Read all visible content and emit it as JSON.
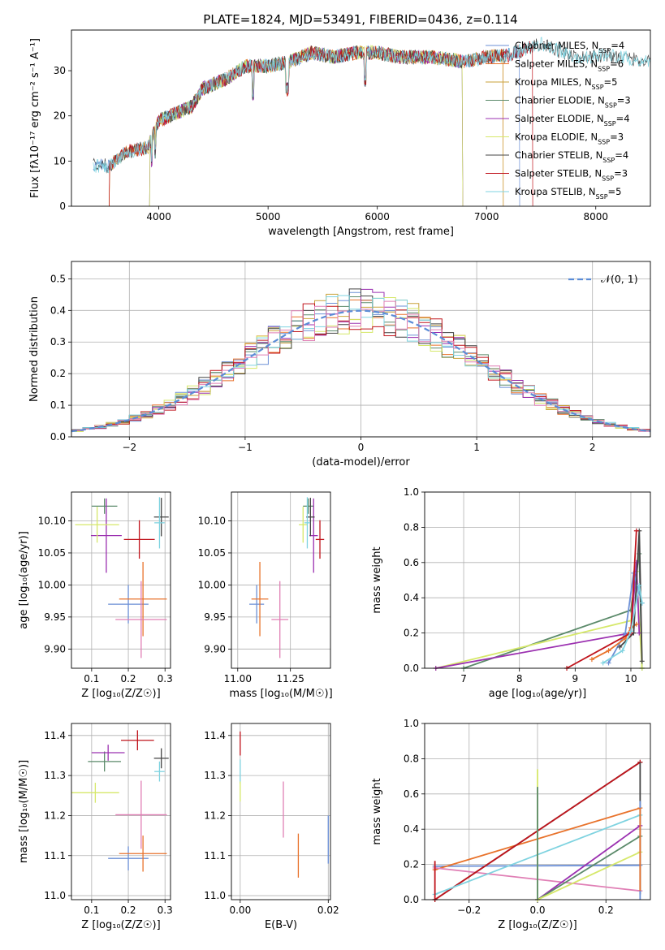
{
  "figure_title": "PLATE=1824, MJD=53491, FIBERID=0436, z=0.114",
  "colors": {
    "chabrier_miles": "#6b8fd6",
    "salpeter_miles": "#e8722b",
    "kroupa_miles": "#c9a23a",
    "chabrier_elodie": "#5b8a6a",
    "salpeter_elodie": "#9b30b0",
    "kroupa_elodie": "#d6e86a",
    "chabrier_stelib": "#444444",
    "salpeter_stelib": "#c0141c",
    "kroupa_stelib": "#7fd3e0",
    "pink": "#e07fb5",
    "normal_curve": "#5b8cd6"
  },
  "chart_data": [
    {
      "id": "spectrum",
      "type": "line",
      "xlabel": "wavelength [Angstrom, rest frame]",
      "ylabel": "Flux [f",
      "ylabel_full": "Flux [fλ10⁻¹⁷ erg cm⁻² s⁻¹ A⁻¹]",
      "xlim": [
        3200,
        8500
      ],
      "ylim": [
        0,
        39
      ],
      "xticks": [
        4000,
        5000,
        6000,
        7000,
        8000
      ],
      "yticks": [
        0,
        10,
        20,
        30
      ],
      "legend": [
        "Chabrier MILES, N_SSP=4",
        "Salpeter MILES, N_SSP=6",
        "Kroupa MILES, N_SSP=5",
        "Chabrier ELODIE, N_SSP=3",
        "Salpeter ELODIE, N_SSP=4",
        "Kroupa ELODIE, N_SSP=3",
        "Chabrier STELIB, N_SSP=4",
        "Salpeter STELIB, N_SSP=3",
        "Kroupa STELIB, N_SSP=5"
      ],
      "legend_placement": "right",
      "series": [
        {
          "key": "chabrier_miles",
          "start": 3400,
          "end": 7300
        },
        {
          "key": "salpeter_miles",
          "start": 3550,
          "end": 7150
        },
        {
          "key": "kroupa_miles",
          "start": 3550,
          "end": 7150
        },
        {
          "key": "chabrier_elodie",
          "start": 3920,
          "end": 6780
        },
        {
          "key": "salpeter_elodie",
          "start": 3920,
          "end": 6780
        },
        {
          "key": "kroupa_elodie",
          "start": 3920,
          "end": 6780
        },
        {
          "key": "chabrier_stelib",
          "start": 3400,
          "end": 8500
        },
        {
          "key": "salpeter_stelib",
          "start": 3550,
          "end": 7420
        },
        {
          "key": "kroupa_stelib",
          "start": 3400,
          "end": 8500
        }
      ],
      "continuum": [
        [
          3400,
          9
        ],
        [
          3550,
          9
        ],
        [
          3700,
          12
        ],
        [
          3900,
          13
        ],
        [
          4000,
          19
        ],
        [
          4200,
          21
        ],
        [
          4300,
          22
        ],
        [
          4400,
          26
        ],
        [
          4600,
          28
        ],
        [
          4800,
          31
        ],
        [
          5000,
          31
        ],
        [
          5200,
          32
        ],
        [
          5400,
          34
        ],
        [
          5600,
          33
        ],
        [
          5800,
          34
        ],
        [
          6000,
          34
        ],
        [
          6200,
          33
        ],
        [
          6500,
          33
        ],
        [
          6800,
          32
        ],
        [
          7000,
          33
        ],
        [
          7200,
          33.5
        ],
        [
          7500,
          36
        ],
        [
          7800,
          33
        ],
        [
          8100,
          33.5
        ],
        [
          8500,
          32
        ]
      ]
    },
    {
      "id": "residuals",
      "type": "line",
      "xlabel": "(data-model)/error",
      "ylabel": "Normed distribution",
      "xlim": [
        -2.5,
        2.5
      ],
      "ylim": [
        0,
        0.555
      ],
      "xticks": [
        -2,
        -1,
        0,
        1,
        2
      ],
      "yticks": [
        0.0,
        0.1,
        0.2,
        0.3,
        0.4,
        0.5
      ],
      "legend": [
        "𝒩(0, 1)"
      ],
      "legend_placement": "top-right",
      "bin_width": 0.1
    },
    {
      "id": "z_age",
      "type": "scatter",
      "xlabel": "Z [log₁₀(Z/Z☉)]",
      "ylabel": "age  [log₁₀(age/yr)]",
      "xlim": [
        0.045,
        0.315
      ],
      "ylim": [
        9.87,
        10.145
      ],
      "xticks": [
        0.1,
        0.2,
        0.3
      ],
      "yticks": [
        9.9,
        9.95,
        10.0,
        10.05,
        10.1
      ],
      "points": [
        {
          "key": "chabrier_miles",
          "x": 0.2,
          "y": 9.97,
          "ex": 0.055,
          "ey": 0.03
        },
        {
          "key": "salpeter_miles",
          "x": 0.24,
          "y": 9.978,
          "ex": 0.065,
          "ey": 0.058
        },
        {
          "key": "chabrier_elodie",
          "x": 0.135,
          "y": 10.123,
          "ex": 0.035,
          "ey": 0.012
        },
        {
          "key": "salpeter_elodie",
          "x": 0.14,
          "y": 10.077,
          "ex": 0.042,
          "ey": 0.058
        },
        {
          "key": "kroupa_elodie",
          "x": 0.115,
          "y": 10.094,
          "ex": 0.06,
          "ey": 0.028
        },
        {
          "key": "chabrier_stelib",
          "x": 0.29,
          "y": 10.106,
          "ex": 0.02,
          "ey": 0.03
        },
        {
          "key": "salpeter_stelib",
          "x": 0.23,
          "y": 10.071,
          "ex": 0.042,
          "ey": 0.03
        },
        {
          "key": "kroupa_stelib",
          "x": 0.285,
          "y": 10.097,
          "ex": 0.014,
          "ey": 0.04
        },
        {
          "key": "pink",
          "x": 0.235,
          "y": 9.946,
          "ex": 0.07,
          "ey": 0.06
        }
      ]
    },
    {
      "id": "mass_age",
      "type": "scatter",
      "xlabel": "mass [log₁₀(M/M☉)]",
      "ylabel": "",
      "xlim": [
        10.97,
        11.44
      ],
      "ylim": [
        9.87,
        10.145
      ],
      "xticks": [
        11.0,
        11.25
      ],
      "yticks": [
        9.9,
        9.95,
        10.0,
        10.05,
        10.1
      ],
      "points": [
        {
          "key": "chabrier_miles",
          "x": 11.09,
          "y": 9.97,
          "ex": 0.035,
          "ey": 0.03
        },
        {
          "key": "salpeter_miles",
          "x": 11.105,
          "y": 9.978,
          "ex": 0.04,
          "ey": 0.058
        },
        {
          "key": "chabrier_elodie",
          "x": 11.335,
          "y": 10.123,
          "ex": 0.025,
          "ey": 0.012
        },
        {
          "key": "salpeter_elodie",
          "x": 11.36,
          "y": 10.077,
          "ex": 0.02,
          "ey": 0.058
        },
        {
          "key": "kroupa_elodie",
          "x": 11.31,
          "y": 10.094,
          "ex": 0.02,
          "ey": 0.028
        },
        {
          "key": "chabrier_stelib",
          "x": 11.345,
          "y": 10.106,
          "ex": 0.02,
          "ey": 0.03
        },
        {
          "key": "salpeter_stelib",
          "x": 11.39,
          "y": 10.071,
          "ex": 0.02,
          "ey": 0.03
        },
        {
          "key": "kroupa_stelib",
          "x": 11.33,
          "y": 10.097,
          "ex": 0.014,
          "ey": 0.04
        },
        {
          "key": "pink",
          "x": 11.2,
          "y": 9.946,
          "ex": 0.04,
          "ey": 0.06
        }
      ]
    },
    {
      "id": "age_weight",
      "type": "line",
      "xlabel": "age  [log₁₀(age/yr)]",
      "ylabel": "mass weight",
      "xlim": [
        6.3,
        10.35
      ],
      "ylim": [
        0,
        1
      ],
      "xticks": [
        7,
        8,
        9,
        10
      ],
      "yticks": [
        0.0,
        0.2,
        0.4,
        0.6,
        0.8,
        1.0
      ],
      "series": [
        {
          "key": "chabrier_elodie",
          "points": [
            [
              7.0,
              0.0
            ],
            [
              10.0,
              0.33
            ],
            [
              10.15,
              0.65
            ],
            [
              10.2,
              0.0
            ]
          ]
        },
        {
          "key": "kroupa_elodie",
          "points": [
            [
              6.5,
              0.0
            ],
            [
              10.0,
              0.27
            ],
            [
              10.1,
              0.55
            ],
            [
              10.2,
              0.0
            ]
          ]
        },
        {
          "key": "salpeter_elodie",
          "points": [
            [
              6.5,
              0.0
            ],
            [
              10.0,
              0.2
            ],
            [
              10.1,
              0.6
            ],
            [
              10.15,
              0.2
            ]
          ]
        },
        {
          "key": "chabrier_miles",
          "points": [
            [
              9.6,
              0.03
            ],
            [
              9.9,
              0.2
            ],
            [
              10.05,
              0.54
            ],
            [
              10.2,
              0.37
            ]
          ]
        },
        {
          "key": "salpeter_miles",
          "points": [
            [
              9.3,
              0.05
            ],
            [
              9.6,
              0.1
            ],
            [
              9.9,
              0.17
            ],
            [
              10.0,
              0.23
            ],
            [
              10.1,
              0.25
            ]
          ]
        },
        {
          "key": "chabrier_stelib",
          "points": [
            [
              9.8,
              0.12
            ],
            [
              10.05,
              0.2
            ],
            [
              10.15,
              0.78
            ],
            [
              10.2,
              0.04
            ]
          ]
        },
        {
          "key": "salpeter_stelib",
          "points": [
            [
              8.85,
              0.0
            ],
            [
              10.0,
              0.2
            ],
            [
              10.1,
              0.78
            ]
          ]
        },
        {
          "key": "kroupa_stelib",
          "points": [
            [
              9.5,
              0.03
            ],
            [
              9.85,
              0.1
            ],
            [
              10.0,
              0.21
            ],
            [
              10.15,
              0.47
            ],
            [
              10.2,
              0.37
            ]
          ]
        }
      ]
    },
    {
      "id": "z_mass",
      "type": "scatter",
      "xlabel": "Z [log₁₀(Z/Z☉)]",
      "ylabel": "mass [log₁₀(M/M☉)]",
      "xlim": [
        0.045,
        0.315
      ],
      "ylim": [
        10.99,
        11.43
      ],
      "xticks": [
        0.1,
        0.2,
        0.3
      ],
      "yticks": [
        11.0,
        11.1,
        11.2,
        11.3,
        11.4
      ],
      "points": [
        {
          "key": "chabrier_miles",
          "x": 0.2,
          "y": 11.093,
          "ex": 0.055,
          "ey": 0.03
        },
        {
          "key": "salpeter_miles",
          "x": 0.24,
          "y": 11.105,
          "ex": 0.065,
          "ey": 0.045
        },
        {
          "key": "chabrier_elodie",
          "x": 0.135,
          "y": 11.335,
          "ex": 0.045,
          "ey": 0.025
        },
        {
          "key": "salpeter_elodie",
          "x": 0.145,
          "y": 11.357,
          "ex": 0.045,
          "ey": 0.02
        },
        {
          "key": "kroupa_elodie",
          "x": 0.11,
          "y": 11.257,
          "ex": 0.065,
          "ey": 0.025
        },
        {
          "key": "chabrier_stelib",
          "x": 0.29,
          "y": 11.343,
          "ex": 0.02,
          "ey": 0.025
        },
        {
          "key": "salpeter_stelib",
          "x": 0.225,
          "y": 11.388,
          "ex": 0.045,
          "ey": 0.025
        },
        {
          "key": "kroupa_stelib",
          "x": 0.285,
          "y": 11.31,
          "ex": 0.014,
          "ey": 0.025
        },
        {
          "key": "pink",
          "x": 0.235,
          "y": 11.202,
          "ex": 0.07,
          "ey": 0.085
        }
      ]
    },
    {
      "id": "ebv_mass",
      "type": "scatter",
      "xlabel": "E(B-V)",
      "ylabel": "",
      "xlim": [
        -0.002,
        0.0205
      ],
      "ylim": [
        10.99,
        11.43
      ],
      "xticks": [
        0.0,
        0.02
      ],
      "yticks": [
        11.0,
        11.1,
        11.2,
        11.3,
        11.4
      ],
      "points": [
        {
          "key": "chabrier_miles",
          "x": 0.02,
          "y": 11.14,
          "ex": 0,
          "ey": 0.06
        },
        {
          "key": "salpeter_miles",
          "x": 0.0132,
          "y": 11.1,
          "ex": 0,
          "ey": 0.055
        },
        {
          "key": "pink",
          "x": 0.0098,
          "y": 11.215,
          "ex": 0,
          "ey": 0.07
        },
        {
          "key": "salpeter_stelib",
          "x": 0.0,
          "y": 11.38,
          "ex": 0,
          "ey": 0.03
        },
        {
          "key": "kroupa_stelib",
          "x": 0.0,
          "y": 11.31,
          "ex": 0,
          "ey": 0.03
        },
        {
          "key": "kroupa_elodie",
          "x": 0.0,
          "y": 11.26,
          "ex": 0,
          "ey": 0.025
        }
      ]
    },
    {
      "id": "z_weight",
      "type": "line",
      "xlabel": "Z [log₁₀(Z/Z☉)]",
      "ylabel": "mass weight",
      "xlim": [
        -0.33,
        0.33
      ],
      "ylim": [
        0,
        1
      ],
      "xticks": [
        -0.2,
        0.0,
        0.2
      ],
      "yticks": [
        0.0,
        0.2,
        0.4,
        0.6,
        0.8,
        1.0
      ],
      "series": [
        {
          "key": "chabrier_miles",
          "points": [
            [
              -0.3,
              0.19
            ],
            [
              0.3,
              0.195
            ]
          ]
        },
        {
          "key": "salpeter_miles",
          "points": [
            [
              -0.3,
              0.17
            ],
            [
              0.3,
              0.52
            ]
          ]
        },
        {
          "key": "pink",
          "points": [
            [
              -0.3,
              0.18
            ],
            [
              0.3,
              0.05
            ]
          ]
        },
        {
          "key": "chabrier_stelib",
          "points": [
            [
              -0.3,
              0.0
            ],
            [
              0.3,
              0.78
            ]
          ]
        },
        {
          "key": "salpeter_stelib",
          "points": [
            [
              -0.3,
              0.0
            ],
            [
              0.3,
              0.78
            ]
          ]
        },
        {
          "key": "kroupa_stelib",
          "points": [
            [
              -0.3,
              0.03
            ],
            [
              0.3,
              0.48
            ]
          ]
        },
        {
          "key": "salpeter_elodie",
          "points": [
            [
              0.0,
              0.0
            ],
            [
              0.3,
              0.42
            ]
          ]
        },
        {
          "key": "chabrier_elodie",
          "points": [
            [
              0.0,
              0.0
            ],
            [
              0.3,
              0.36
            ]
          ]
        },
        {
          "key": "kroupa_elodie",
          "points": [
            [
              0.0,
              0.0
            ],
            [
              0.3,
              0.27
            ]
          ]
        }
      ],
      "verticals": [
        {
          "key": "salpeter_stelib",
          "x": -0.3,
          "y0": 0.0,
          "y1": 0.22
        },
        {
          "key": "kroupa_elodie",
          "x": 0.0,
          "y0": 0.0,
          "y1": 0.74
        },
        {
          "key": "chabrier_elodie",
          "x": 0.0,
          "y0": 0.0,
          "y1": 0.64
        },
        {
          "key": "chabrier_stelib",
          "x": 0.3,
          "y0": 0.03,
          "y1": 0.78
        },
        {
          "key": "chabrier_miles",
          "x": 0.3,
          "y0": 0.0,
          "y1": 0.56
        },
        {
          "key": "salpeter_miles",
          "x": 0.3,
          "y0": 0.05,
          "y1": 0.52
        }
      ]
    }
  ]
}
